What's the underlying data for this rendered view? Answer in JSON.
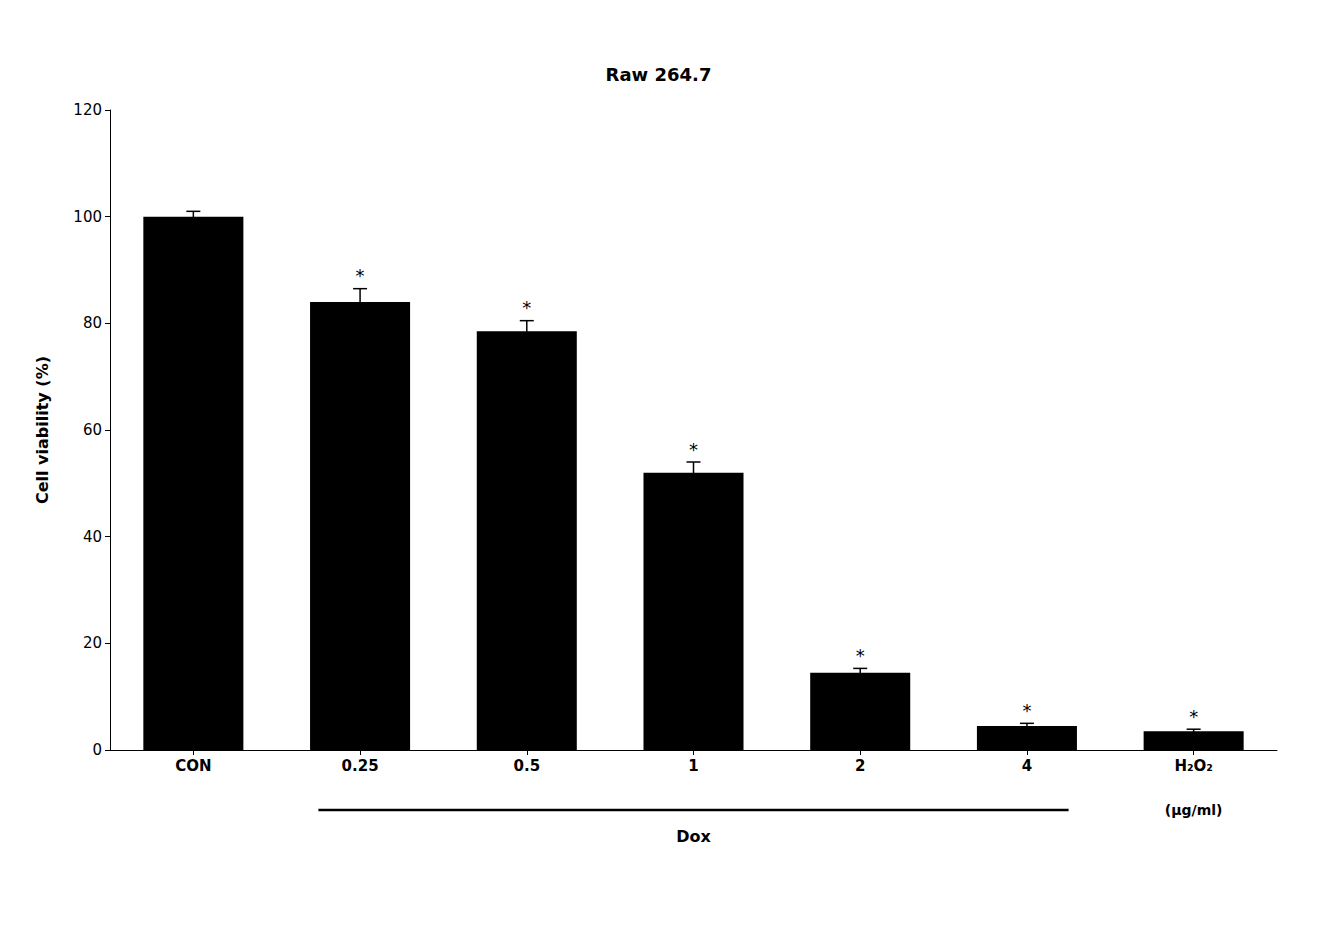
{
  "chart_data": {
    "type": "bar",
    "title": "Raw 264.7",
    "ylabel": "Cell viability (%)",
    "categories": [
      "CON",
      "0.25",
      "0.5",
      "1",
      "2",
      "4",
      "H₂O₂"
    ],
    "values": [
      100.0,
      84.0,
      78.5,
      52.0,
      14.5,
      4.5,
      3.5
    ],
    "errors": [
      1.0,
      2.5,
      2.0,
      2.0,
      0.8,
      0.5,
      0.4
    ],
    "significance": [
      null,
      "*",
      "*",
      "*",
      "*",
      "*",
      "*"
    ],
    "color": "#000000",
    "ylim": [
      0,
      120
    ],
    "yticks": [
      0,
      20,
      40,
      60,
      80,
      100,
      120
    ],
    "grid": false,
    "annotations": [
      {
        "text": "Dox",
        "from": "0.25",
        "to": "4"
      },
      {
        "text": "(μg/ml)",
        "category": "H₂O₂"
      }
    ]
  }
}
